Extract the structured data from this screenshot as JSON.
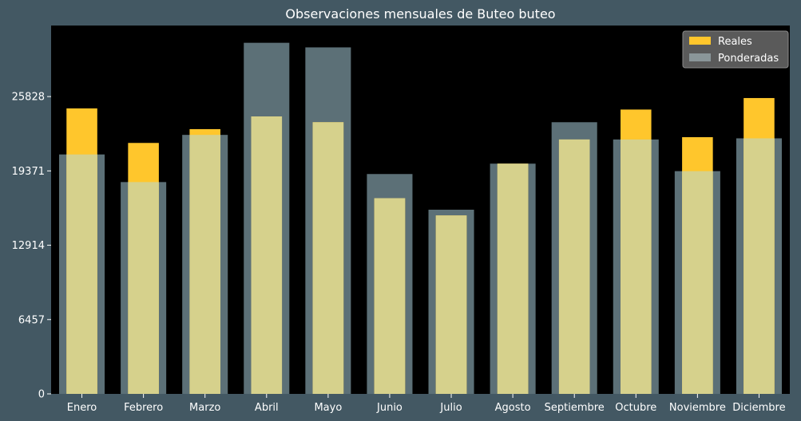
{
  "chart_data": {
    "type": "bar",
    "title": "Observaciones mensuales de Buteo buteo",
    "xlabel": "",
    "ylabel": "",
    "categories": [
      "Enero",
      "Febrero",
      "Marzo",
      "Abril",
      "Mayo",
      "Junio",
      "Julio",
      "Agosto",
      "Septiembre",
      "Octubre",
      "Noviembre",
      "Diciembre"
    ],
    "series": [
      {
        "name": "Reales",
        "color": "#ffc62c",
        "values": [
          24800,
          21800,
          23000,
          24100,
          23600,
          17000,
          15500,
          20000,
          22100,
          24700,
          22300,
          25700
        ]
      },
      {
        "name": "Ponderadas",
        "color": "#5c7077",
        "values": [
          20800,
          18400,
          22500,
          30500,
          30100,
          19100,
          16000,
          20000,
          23600,
          22100,
          19350,
          22200
        ]
      }
    ],
    "overlap_color": "#d6d18c",
    "yticks": [
      0,
      6457,
      12914,
      19371,
      25828
    ],
    "ylim": [
      0,
      32000
    ],
    "legend": "top-right",
    "grid": false,
    "plot_background": "#000000"
  }
}
